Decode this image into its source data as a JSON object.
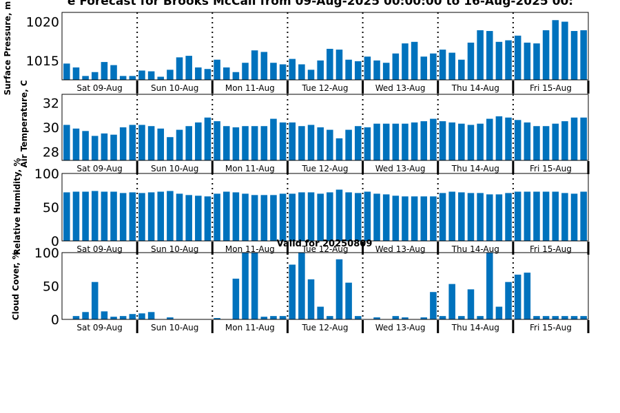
{
  "chart_data": {
    "type": "bar",
    "title": "e Forecast for Brooks McCall from 09-Aug-2025 00:00:00 to 16-Aug-2025 00:",
    "subtitle": "Valid for 20250809",
    "day_labels": [
      "Sat 09-Aug",
      "Sun 10-Aug",
      "Mon 11-Aug",
      "Tue 12-Aug",
      "Wed 13-Aug",
      "Thu 14-Aug",
      "Fri 15-Aug"
    ],
    "panels": [
      {
        "name": "surface-pressure",
        "ylabel": "Surface Pressure, m",
        "ylim": [
          1012.5,
          1021.2
        ],
        "yticks": [
          1015,
          1020
        ],
        "ytick_labels": [
          "1015",
          "1020"
        ],
        "values": [
          1014.6,
          1014.1,
          1013.0,
          1013.5,
          1014.8,
          1014.4,
          1013.0,
          1013.0,
          1013.7,
          1013.6,
          1012.9,
          1013.8,
          1015.4,
          1015.6,
          1014.1,
          1013.9,
          1015.1,
          1014.1,
          1013.5,
          1014.7,
          1016.3,
          1016.1,
          1014.7,
          1014.5,
          1015.2,
          1014.5,
          1013.8,
          1015.0,
          1016.5,
          1016.4,
          1015.1,
          1014.9,
          1015.5,
          1015.0,
          1014.7,
          1015.9,
          1017.2,
          1017.4,
          1015.5,
          1015.9,
          1016.4,
          1016.0,
          1015.1,
          1017.3,
          1018.9,
          1018.8,
          1017.4,
          1017.6,
          1018.2,
          1017.3,
          1017.2,
          1018.9,
          1020.2,
          1020.0,
          1018.8,
          1018.9
        ]
      },
      {
        "name": "air-temperature",
        "ylabel": "Air Temperature, C",
        "ylim": [
          27.3,
          32.7
        ],
        "yticks": [
          28,
          30,
          32
        ],
        "ytick_labels": [
          "28",
          "30",
          "32"
        ],
        "values": [
          30.2,
          29.9,
          29.7,
          29.3,
          29.5,
          29.4,
          30.0,
          30.2,
          30.2,
          30.1,
          29.9,
          29.2,
          29.8,
          30.1,
          30.4,
          30.8,
          30.5,
          30.1,
          30.0,
          30.1,
          30.1,
          30.1,
          30.7,
          30.4,
          30.4,
          30.1,
          30.2,
          30.0,
          29.8,
          29.1,
          29.8,
          30.1,
          30.0,
          30.3,
          30.3,
          30.3,
          30.3,
          30.4,
          30.5,
          30.7,
          30.5,
          30.4,
          30.3,
          30.2,
          30.3,
          30.7,
          30.9,
          30.8,
          30.6,
          30.4,
          30.1,
          30.1,
          30.3,
          30.5,
          30.8,
          30.8
        ]
      },
      {
        "name": "relative-humidity",
        "ylabel": "Relative Humidity, %",
        "ylim": [
          0,
          100
        ],
        "yticks": [
          0,
          50,
          100
        ],
        "ytick_labels": [
          "0",
          "50",
          "100"
        ],
        "values": [
          72,
          73,
          73,
          74,
          73,
          73,
          71,
          72,
          71,
          72,
          73,
          74,
          70,
          68,
          67,
          66,
          70,
          73,
          72,
          70,
          68,
          68,
          68,
          70,
          70,
          72,
          72,
          70,
          72,
          76,
          72,
          71,
          73,
          70,
          69,
          67,
          66,
          66,
          66,
          66,
          71,
          73,
          72,
          71,
          71,
          69,
          69,
          71,
          73,
          73,
          73,
          73,
          73,
          71,
          70,
          73
        ]
      },
      {
        "name": "cloud-cover",
        "ylabel": "Cloud Cover, %",
        "ylim": [
          0,
          100
        ],
        "yticks": [
          0,
          50,
          100
        ],
        "ytick_labels": [
          "0",
          "50",
          "100"
        ],
        "values": [
          0,
          5,
          11,
          56,
          12,
          4,
          5,
          8,
          9,
          11,
          0,
          3,
          0,
          0,
          0,
          0,
          2,
          0,
          61,
          100,
          100,
          4,
          5,
          5,
          82,
          100,
          60,
          19,
          5,
          90,
          55,
          5,
          0,
          3,
          0,
          5,
          3,
          0,
          3,
          41,
          5,
          53,
          5,
          45,
          5,
          100,
          19,
          56,
          67,
          70,
          5,
          5,
          5,
          5,
          5,
          5
        ]
      }
    ]
  }
}
